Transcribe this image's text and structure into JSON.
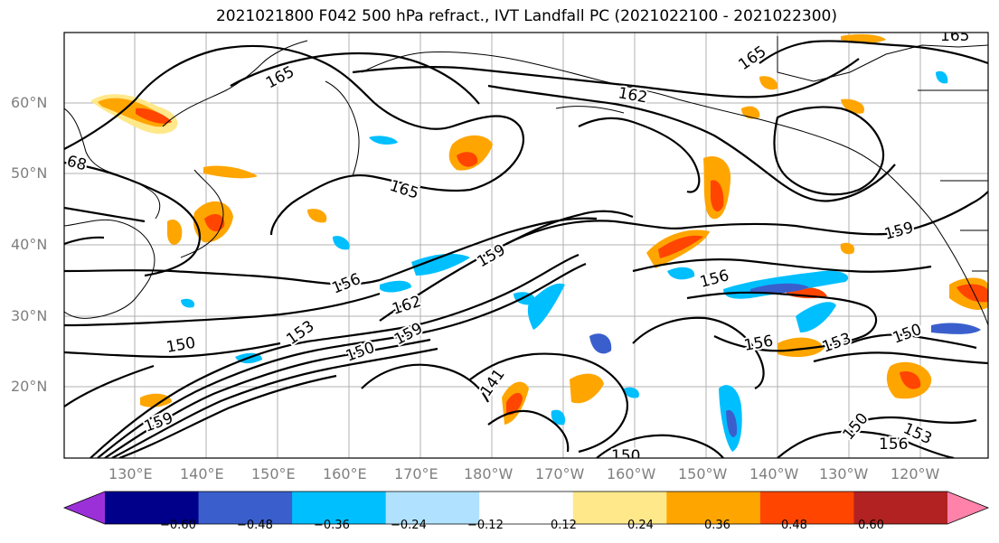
{
  "title": "2021021800 F042 500 hPa refract., IVT Landfall PC (2021022100 - 2021022300)",
  "lat_labels": [
    "60°N",
    "50°N",
    "40°N",
    "30°N",
    "20°N"
  ],
  "lon_labels": [
    "130°E",
    "140°E",
    "150°E",
    "160°E",
    "170°E",
    "180°W",
    "170°W",
    "160°W",
    "150°W",
    "140°W",
    "130°W",
    "120°W"
  ],
  "contour_labels": [
    "165",
    "165",
    "162",
    "165",
    "68",
    "159",
    "159",
    "156",
    "156",
    "162",
    "150",
    "153",
    "159",
    "150",
    "159",
    "141",
    "156",
    "153",
    "150",
    "150",
    "153",
    "156",
    "150",
    "165"
  ],
  "colorbar": {
    "ticks": [
      "−0.60",
      "−0.48",
      "−0.36",
      "−0.24",
      "−0.12",
      "0.12",
      "0.24",
      "0.36",
      "0.48",
      "0.60"
    ],
    "colors": [
      "#9b30d9",
      "#00008b",
      "#3a5fcd",
      "#00bfff",
      "#b0e2ff",
      "#ffffff",
      "#ffe88a",
      "#ffa500",
      "#ff4500",
      "#b22222",
      "#ff82ab"
    ]
  }
}
